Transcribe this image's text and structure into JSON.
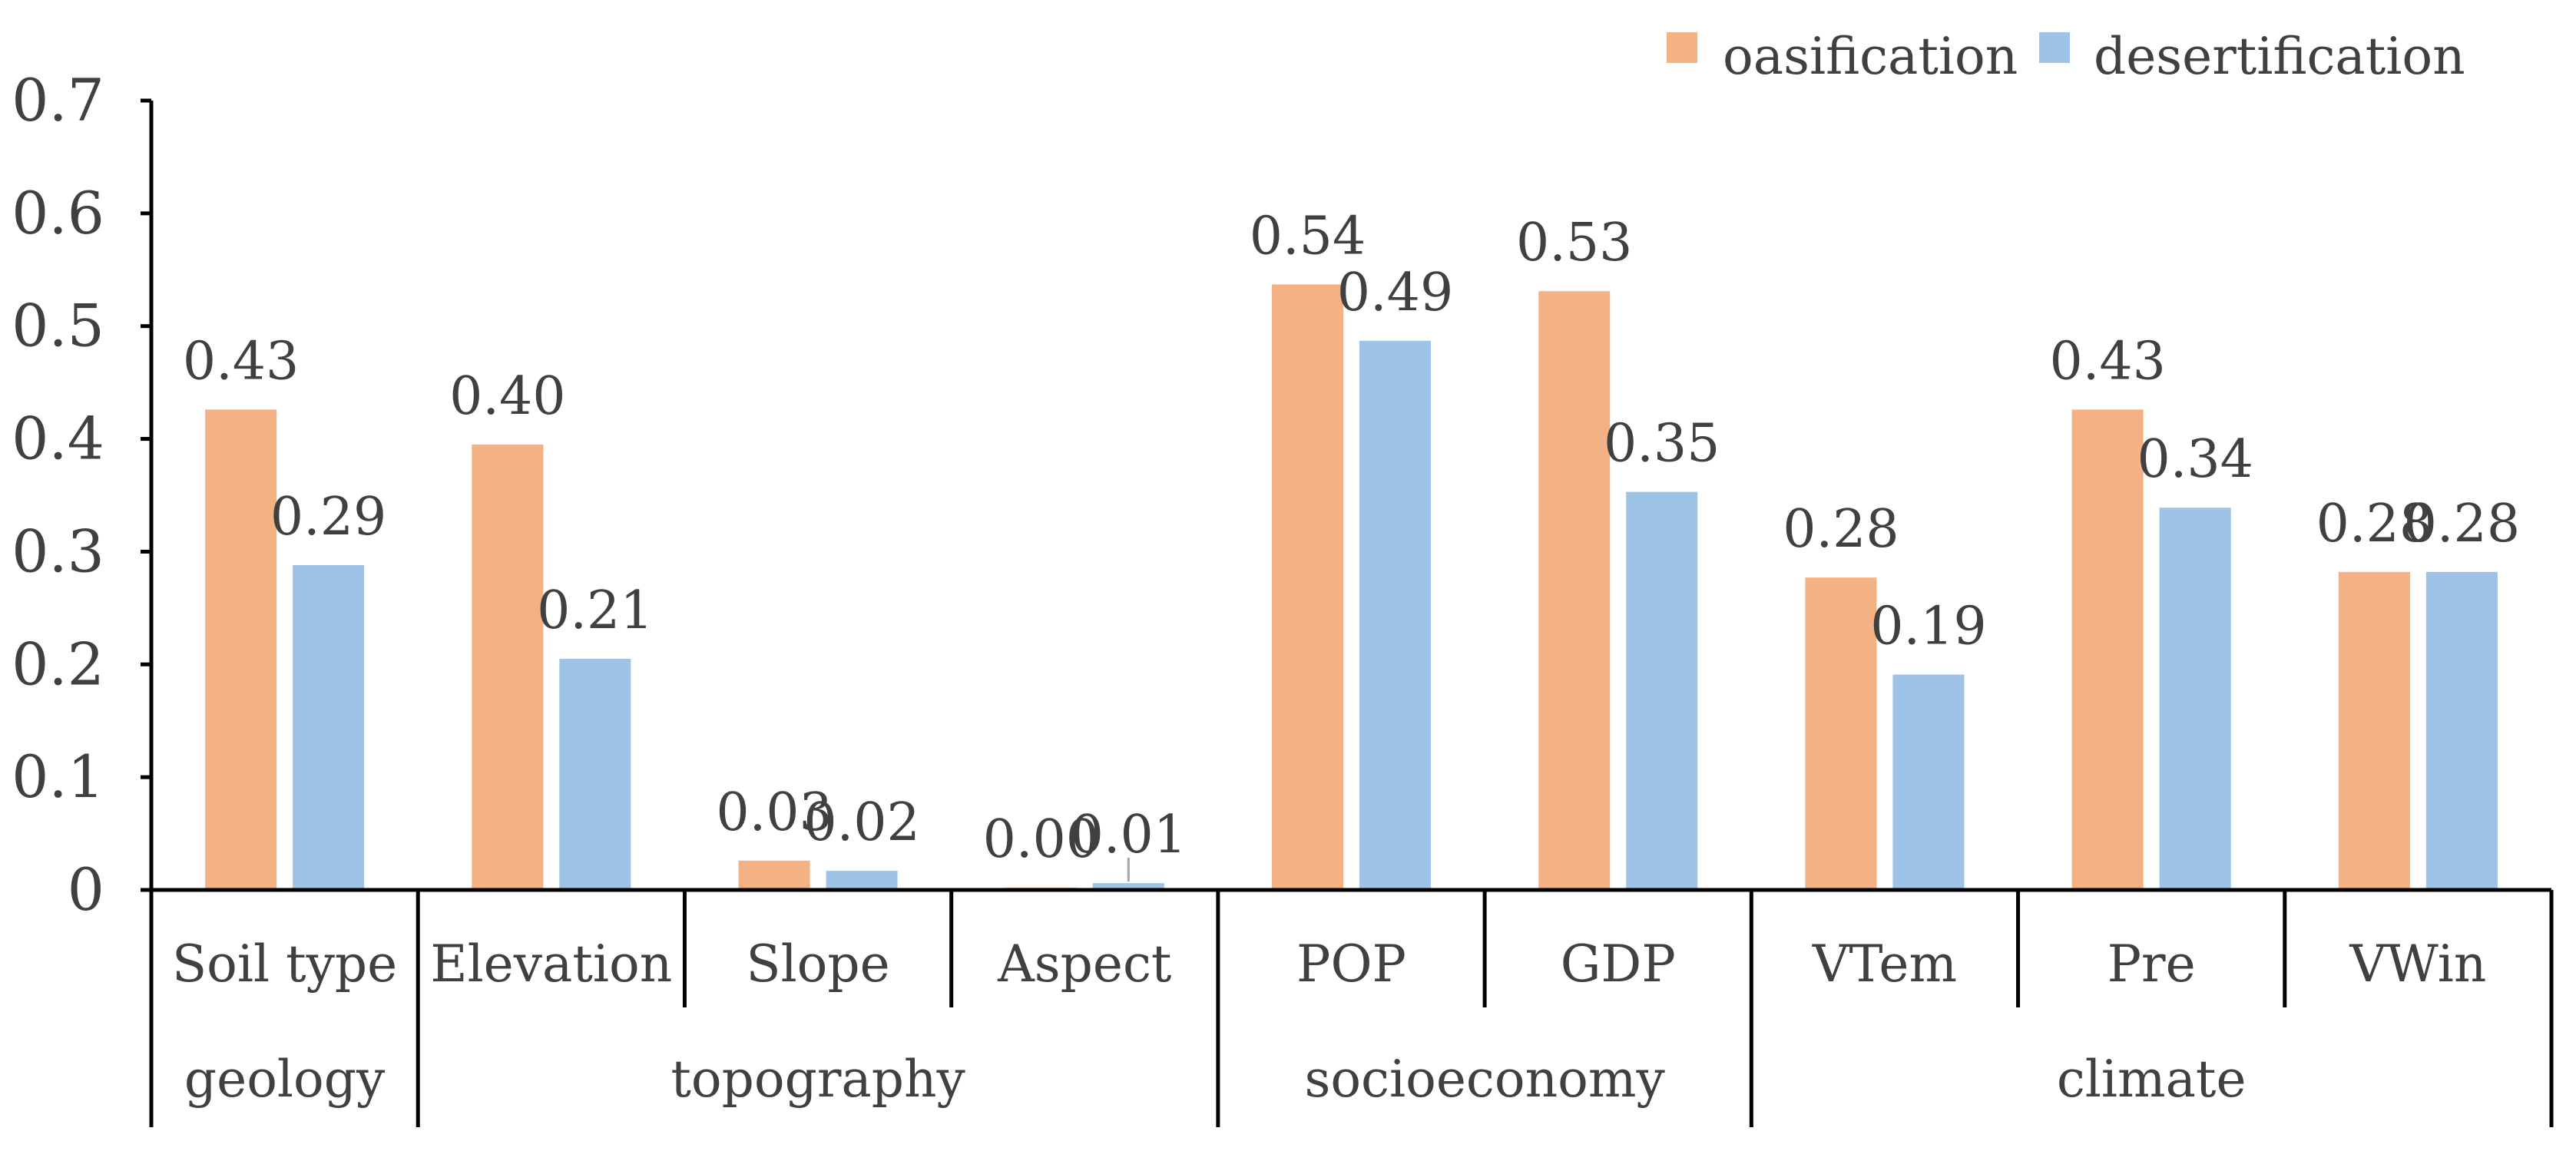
{
  "chart_data": {
    "type": "bar",
    "title": "",
    "xlabel": "",
    "ylabel": "",
    "ylim": [
      0,
      0.7
    ],
    "yticks": [
      "0",
      "0.1",
      "0.2",
      "0.3",
      "0.4",
      "0.5",
      "0.6",
      "0.7"
    ],
    "categories": [
      "Soil type",
      "Elevation",
      "Slope",
      "Aspect",
      "POP",
      "GDP",
      "VTem",
      "Pre",
      "VWin"
    ],
    "groups": [
      {
        "label": "geology",
        "start": 0,
        "end": 0
      },
      {
        "label": "topography",
        "start": 1,
        "end": 3
      },
      {
        "label": "socioeconomy",
        "start": 4,
        "end": 5
      },
      {
        "label": "climate",
        "start": 6,
        "end": 8
      }
    ],
    "series": [
      {
        "name": "oasification",
        "color": "#F4B183",
        "values": [
          0.426,
          0.395,
          0.026,
          0.002,
          0.537,
          0.531,
          0.277,
          0.426,
          0.282
        ],
        "labels": [
          "0.43",
          "0.40",
          "0.03",
          "0.00",
          "0.54",
          "0.53",
          "0.28",
          "0.43",
          "0.28"
        ]
      },
      {
        "name": "desertification",
        "color": "#9DC3E6",
        "values": [
          0.288,
          0.205,
          0.017,
          0.006,
          0.487,
          0.353,
          0.191,
          0.339,
          0.282
        ],
        "labels": [
          "0.29",
          "0.21",
          "0.02",
          "0.01",
          "0.49",
          "0.35",
          "0.19",
          "0.34",
          "0.28"
        ]
      }
    ],
    "legend": {
      "position": "top-right"
    },
    "grid": false
  }
}
